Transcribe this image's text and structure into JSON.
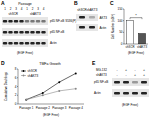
{
  "blots": [
    {
      "panel_label": "A",
      "header": "Passage",
      "groups": [
        "shSCR",
        "shAKT3"
      ],
      "lanes": [
        "1",
        "2",
        "3",
        "4"
      ],
      "rows": [
        "p65 NF-κB S536(P)",
        "p65 NF-κB",
        "Actin"
      ],
      "footer": "(EGF Free)"
    },
    {
      "panel_label": "B",
      "lanes": [
        "shSCR",
        "shAKT3"
      ],
      "rows": [
        "AKT3",
        "Actin"
      ]
    },
    {
      "panel_label": "E",
      "treatments": [
        {
          "name": "MG-132",
          "signs": [
            "-",
            "+",
            "-",
            "+"
          ]
        },
        {
          "name": "shAKT3",
          "signs": [
            "-",
            "-",
            "+",
            "+"
          ]
        }
      ],
      "rows": [
        "p65 NF-κB",
        "Actin"
      ],
      "footer": "(EGF Free)"
    }
  ],
  "chart_data": [
    {
      "type": "bar",
      "panel_label": "C",
      "y_label": "Cell Number (x10⁴)",
      "categories": [
        "shSCR",
        "shAKT3"
      ],
      "values": [
        100,
        45
      ],
      "colors": [
        "#ffffff",
        "#555555"
      ],
      "ylim": [
        0,
        150
      ],
      "yticks": [
        0,
        50,
        100,
        150
      ],
      "annotation": "*",
      "subtitle": "(EGF Free)"
    },
    {
      "type": "line",
      "panel_label": "D",
      "title": "TMFa Growth",
      "y_label": "Cumulative Doublings",
      "categories": [
        "Passage 1",
        "Passage 2",
        "Passage 3",
        "Passage 4"
      ],
      "series": [
        {
          "name": "shSCR",
          "color": "#000000",
          "values": [
            1,
            2.5,
            5,
            7
          ]
        },
        {
          "name": "shAKT3",
          "color": "#888888",
          "values": [
            1,
            2,
            3,
            3.5
          ]
        }
      ],
      "ylim": [
        0,
        8
      ],
      "yticks": [
        0,
        2,
        4,
        6,
        8
      ],
      "legend": "upper left",
      "marker": "circle",
      "subtitle": "(EGF Free)"
    }
  ]
}
